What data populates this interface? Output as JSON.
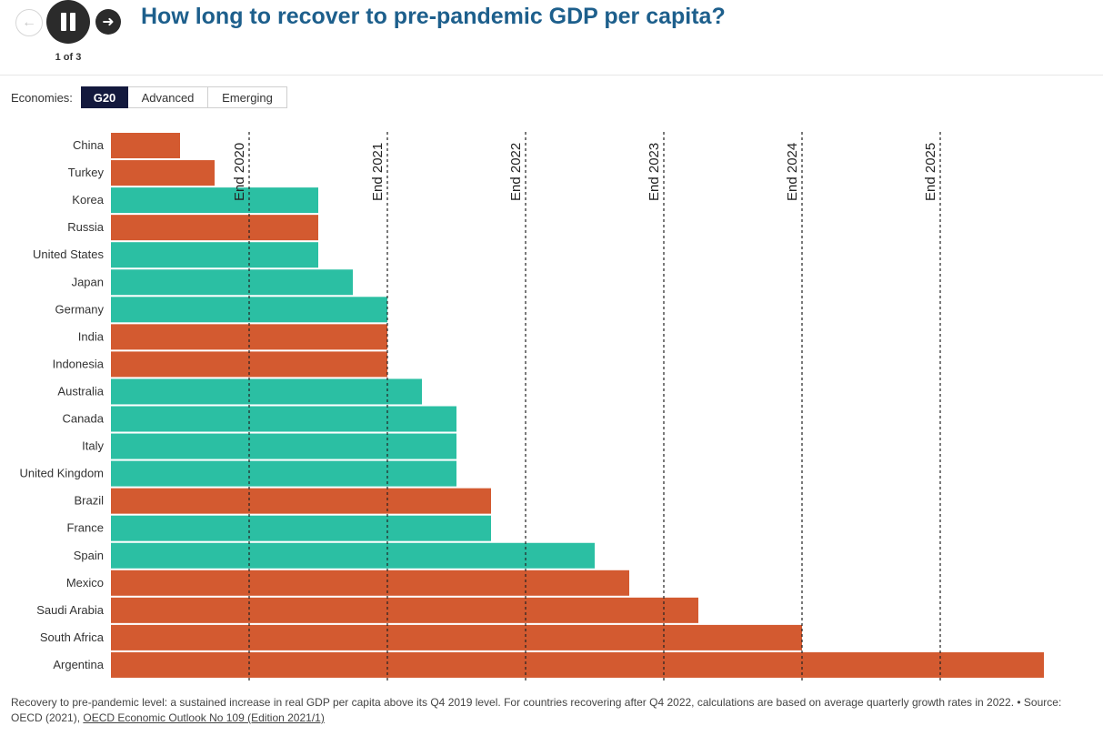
{
  "nav": {
    "prev_icon": "arrow-left-icon",
    "pause_icon": "pause-icon",
    "next_icon": "arrow-right-icon",
    "counter": "1 of 3"
  },
  "title": "How long to recover to pre-pandemic GDP per capita?",
  "filter": {
    "label": "Economies:",
    "options": [
      "G20",
      "Advanced",
      "Emerging"
    ],
    "selected": "G20"
  },
  "colors": {
    "advanced": "#2bbfa3",
    "emerging": "#d35a30",
    "title": "#1d5f8c"
  },
  "chart_data": {
    "type": "bar",
    "orientation": "horizontal",
    "value_unit": "quarters after Q4 2019 until sustained recovery",
    "categories": [
      "China",
      "Turkey",
      "Korea",
      "Russia",
      "United States",
      "Japan",
      "Germany",
      "India",
      "Indonesia",
      "Australia",
      "Canada",
      "Italy",
      "United Kingdom",
      "Brazil",
      "France",
      "Spain",
      "Mexico",
      "Saudi Arabia",
      "South Africa",
      "Argentina"
    ],
    "values": [
      2,
      3,
      6,
      6,
      6,
      7,
      8,
      8,
      8,
      9,
      10,
      10,
      10,
      11,
      11,
      14,
      15,
      17,
      20,
      27
    ],
    "groups": [
      "emerging",
      "emerging",
      "advanced",
      "emerging",
      "advanced",
      "advanced",
      "advanced",
      "emerging",
      "emerging",
      "advanced",
      "advanced",
      "advanced",
      "advanced",
      "emerging",
      "advanced",
      "advanced",
      "emerging",
      "emerging",
      "emerging",
      "emerging"
    ],
    "reference_lines": [
      {
        "label": "End 2020",
        "value": 4
      },
      {
        "label": "End 2021",
        "value": 8
      },
      {
        "label": "End 2022",
        "value": 12
      },
      {
        "label": "End 2023",
        "value": 16
      },
      {
        "label": "End 2024",
        "value": 20
      },
      {
        "label": "End 2025",
        "value": 24
      }
    ],
    "xlim": [
      0,
      27
    ]
  },
  "footnote": {
    "text": "Recovery to pre-pandemic level: a sustained increase in real GDP per capita above its Q4 2019 level. For countries recovering after Q4 2022, calculations are based on average quarterly growth rates in 2022. • Source: OECD (2021), ",
    "link": "OECD Economic Outlook No 109 (Edition 2021/1)"
  }
}
